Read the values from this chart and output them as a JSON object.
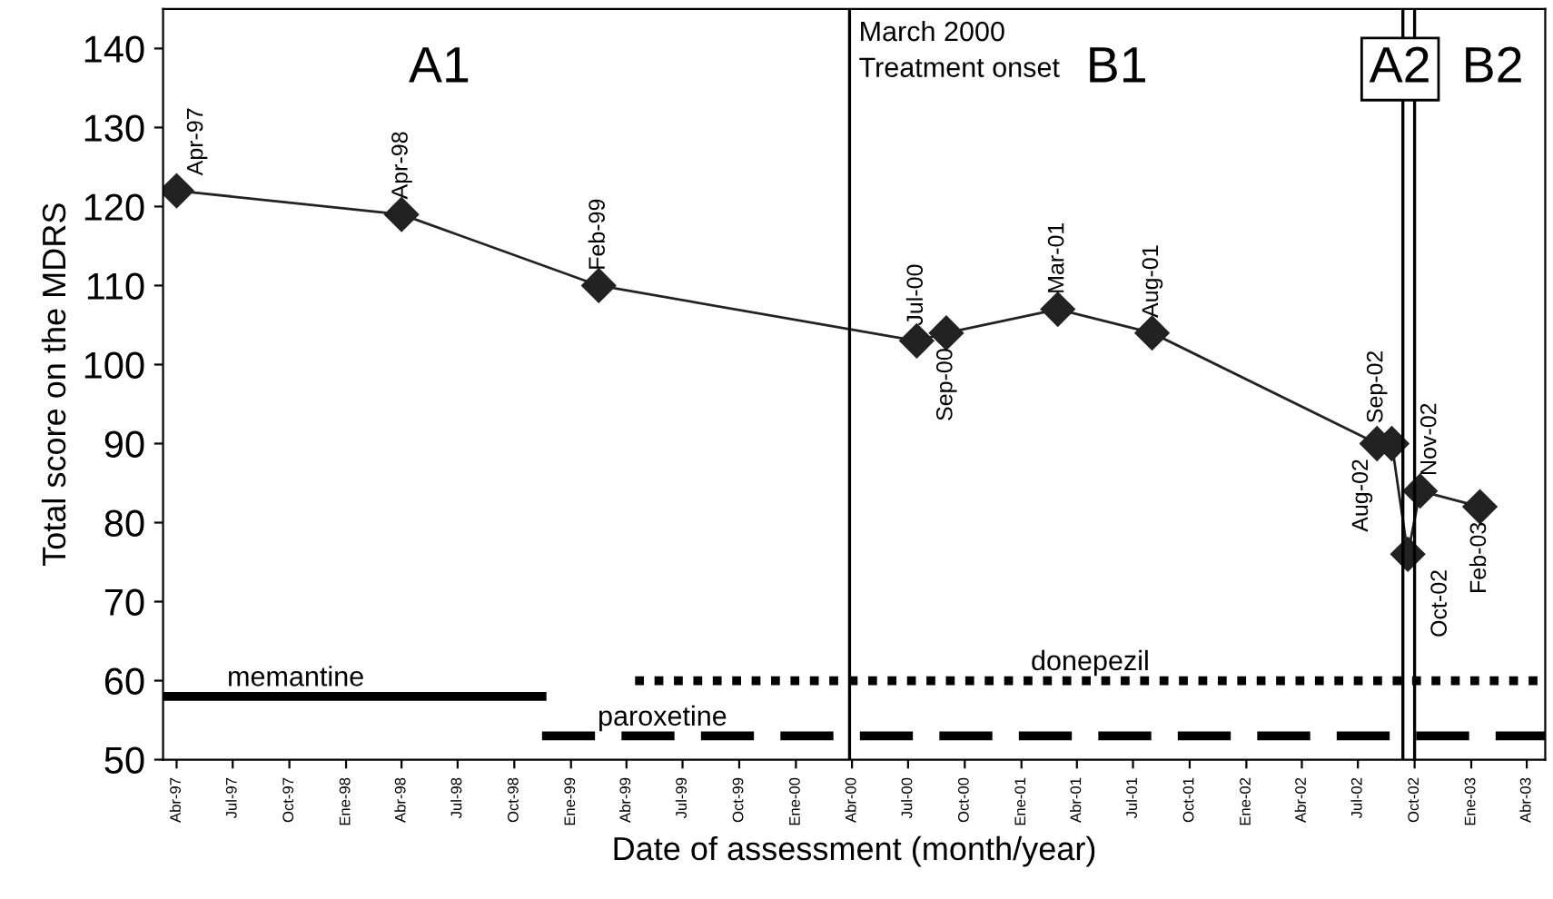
{
  "chart_data": {
    "type": "line",
    "xlabel": "Date of assessment (month/year)",
    "ylabel": "Total score on the MDRS",
    "xlim": [
      "1997-03-10",
      "2003-05-01"
    ],
    "ylim": [
      50,
      145
    ],
    "xticks": [
      {
        "value": "1997-04-01",
        "label": "Abr-97"
      },
      {
        "value": "1997-07-01",
        "label": "Jul-97"
      },
      {
        "value": "1997-10-01",
        "label": "Oct-97"
      },
      {
        "value": "1998-01-01",
        "label": "Ene-98"
      },
      {
        "value": "1998-04-01",
        "label": "Abr-98"
      },
      {
        "value": "1998-07-01",
        "label": "Jul-98"
      },
      {
        "value": "1998-10-01",
        "label": "Oct-98"
      },
      {
        "value": "1999-01-01",
        "label": "Ene-99"
      },
      {
        "value": "1999-04-01",
        "label": "Abr-99"
      },
      {
        "value": "1999-07-01",
        "label": "Jul-99"
      },
      {
        "value": "1999-10-01",
        "label": "Oct-99"
      },
      {
        "value": "2000-01-01",
        "label": "Ene-00"
      },
      {
        "value": "2000-04-01",
        "label": "Abr-00"
      },
      {
        "value": "2000-07-01",
        "label": "Jul-00"
      },
      {
        "value": "2000-10-01",
        "label": "Oct-00"
      },
      {
        "value": "2001-01-01",
        "label": "Ene-01"
      },
      {
        "value": "2001-04-01",
        "label": "Abr-01"
      },
      {
        "value": "2001-07-01",
        "label": "Jul-01"
      },
      {
        "value": "2001-10-01",
        "label": "Oct-01"
      },
      {
        "value": "2002-01-01",
        "label": "Ene-02"
      },
      {
        "value": "2002-04-01",
        "label": "Abr-02"
      },
      {
        "value": "2002-07-01",
        "label": "Jul-02"
      },
      {
        "value": "2002-10-01",
        "label": "Oct-02"
      },
      {
        "value": "2003-01-01",
        "label": "Ene-03"
      },
      {
        "value": "2003-04-01",
        "label": "Abr-03"
      }
    ],
    "yticks": [
      50,
      60,
      70,
      80,
      90,
      100,
      110,
      120,
      130,
      140
    ],
    "grid": false,
    "marker": "diamond",
    "series": [
      {
        "color": "#222222",
        "x": [
          "1997-04-01",
          "1998-04-01",
          "1999-02-15",
          "2000-07-15",
          "2000-09-01",
          "2001-03-01",
          "2001-08-01",
          "2002-08-01",
          "2002-08-25",
          "2002-09-20",
          "2002-10-10",
          "2003-01-15"
        ],
        "values": [
          122,
          119,
          110,
          103,
          104,
          107,
          104,
          90,
          90,
          76,
          84,
          82
        ]
      },
      {
        "name": "memantine",
        "type": "line",
        "marker": "none",
        "line_style": "solid",
        "color": "#000000",
        "x": [
          "1997-03-10",
          "1998-11-15"
        ],
        "values": [
          58,
          58
        ]
      },
      {
        "name": "paroxetine",
        "type": "line",
        "marker": "none",
        "line_style": "dashed",
        "color": "#000000",
        "x": [
          "1998-11-15",
          "2003-05-01"
        ],
        "values": [
          53,
          53
        ]
      },
      {
        "name": "donepezil",
        "type": "line",
        "marker": "none",
        "line_style": "dotted",
        "color": "#000000",
        "x": [
          "1999-04-15",
          "2003-05-01"
        ],
        "values": [
          60,
          60
        ]
      }
    ],
    "ref_lines": [
      {
        "axis": "x",
        "value": "2000-03-28",
        "label": "March 2000\nTreatment onset",
        "color": "#000000"
      },
      {
        "axis": "x",
        "value": "2002-09-12",
        "color": "#000000"
      },
      {
        "axis": "x",
        "value": "2002-10-01",
        "color": "#000000"
      }
    ],
    "annotations": [
      "A1",
      "B1",
      "A2",
      "B2",
      {
        "text": "Apr-97",
        "x": "1997-04-01",
        "y": 122
      },
      {
        "text": "Apr-98",
        "x": "1998-04-01",
        "y": 119
      },
      {
        "text": "Feb-99",
        "x": "1999-02-15",
        "y": 110
      },
      {
        "text": "Jul-00",
        "x": "2000-07-15",
        "y": 103
      },
      {
        "text": "Sep-00",
        "x": "2000-09-01",
        "y": 104
      },
      {
        "text": "Mar-01",
        "x": "2001-03-01",
        "y": 107
      },
      {
        "text": "Aug-01",
        "x": "2001-08-01",
        "y": 104
      },
      {
        "text": "Aug-02",
        "x": "2002-08-01",
        "y": 90
      },
      {
        "text": "Sep-02",
        "x": "2002-08-25",
        "y": 90
      },
      {
        "text": "Oct-02",
        "x": "2002-09-20",
        "y": 76
      },
      {
        "text": "Nov-02",
        "x": "2002-10-10",
        "y": 84
      },
      {
        "text": "Feb-03",
        "x": "2003-01-15",
        "y": 82
      }
    ]
  }
}
